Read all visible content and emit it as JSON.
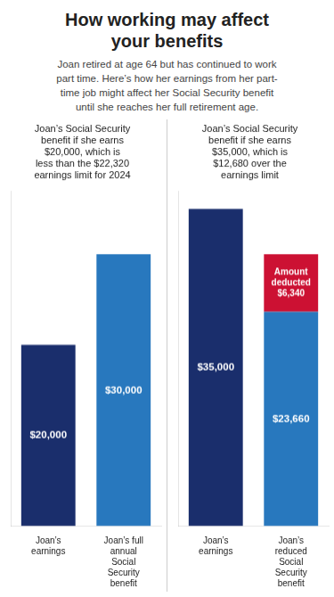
{
  "title": "How working may affect\nyour benefits",
  "subtitle": "Joan retired at age 64 but has continued to work\npart time. Here’s how her earnings from her part-\ntime job might affect her Social Security benefit\nuntil she reaches her full retirement age.",
  "chart_data": [
    {
      "type": "bar",
      "title": "Joan’s Social Security\nbenefit if she earns\n$20,000, which is\nless than the $22,320\nearnings limit for 2024",
      "categories": [
        "Joan’s\nearnings",
        "Joan’s full\nannual\nSocial\nSecurity\nbenefit"
      ],
      "values": [
        20000,
        30000
      ],
      "value_labels": [
        "$20,000",
        "$30,000"
      ],
      "colors": [
        "#1a2e6c",
        "#2878be"
      ],
      "ylim": [
        0,
        37000
      ],
      "data_labels": true,
      "tick_labels": "x",
      "grid": false
    },
    {
      "type": "bar",
      "title": "Joan’s Social Security\nbenefit if she earns\n$35,000, which is\n$12,680 over the\nearnings limit",
      "categories": [
        "Joan’s\nearnings",
        "Joan’s\nreduced\nSocial\nSecurity\nbenefit"
      ],
      "stacked": true,
      "series": [
        {
          "values": [
            35000,
            23660
          ],
          "colors": [
            "#1a2e6c",
            "#2878be"
          ],
          "value_labels": [
            "$35,000",
            "$23,660"
          ]
        },
        {
          "values": [
            null,
            6340
          ],
          "color": "#cc1133",
          "value_labels": [
            null,
            "Amount\ndeducted\n$6,340"
          ]
        }
      ],
      "ylim": [
        0,
        37000
      ],
      "data_labels": true,
      "tick_labels": "x",
      "grid": false
    }
  ]
}
